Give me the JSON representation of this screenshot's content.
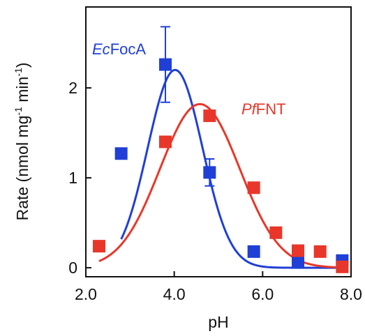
{
  "chart_data": {
    "type": "scatter",
    "title": "",
    "xlabel": "pH",
    "ylabel": "Rate (nmol mg",
    "ylabel_sup1": "-1",
    "ylabel_mid": " min",
    "ylabel_sup2": "-1",
    "ylabel_end": ")",
    "xlim": [
      2.0,
      8.0
    ],
    "ylim": [
      -0.1,
      2.9
    ],
    "xticks": [
      "2.0",
      "4.0",
      "6.0",
      "8.0"
    ],
    "yticks": [
      "0",
      "1",
      "2"
    ],
    "grid": false,
    "series": [
      {
        "name_italic": "Ec",
        "name_rest": "FocA",
        "color": "#1f3fd6",
        "points": [
          {
            "x": 2.8,
            "y": 1.27
          },
          {
            "x": 3.8,
            "y": 2.26,
            "err": 0.42
          },
          {
            "x": 4.8,
            "y": 1.06,
            "err": 0.15
          },
          {
            "x": 5.8,
            "y": 0.18
          },
          {
            "x": 6.8,
            "y": 0.06
          },
          {
            "x": 7.8,
            "y": 0.08
          }
        ],
        "fit": {
          "amplitude": 2.2,
          "center": 4.02,
          "sigma": 0.62,
          "x_start": 2.8,
          "x_end": 7.8
        }
      },
      {
        "name_italic": "Pf",
        "name_rest": "FNT",
        "color": "#e8372a",
        "points": [
          {
            "x": 2.3,
            "y": 0.24
          },
          {
            "x": 3.8,
            "y": 1.4
          },
          {
            "x": 4.8,
            "y": 1.69
          },
          {
            "x": 5.8,
            "y": 0.89
          },
          {
            "x": 6.3,
            "y": 0.39
          },
          {
            "x": 6.8,
            "y": 0.19
          },
          {
            "x": 7.3,
            "y": 0.18
          },
          {
            "x": 7.8,
            "y": 0.01
          }
        ],
        "fit": {
          "amplitude": 1.82,
          "center": 4.58,
          "sigma": 0.9,
          "x_start": 2.3,
          "x_end": 7.8
        }
      }
    ]
  }
}
